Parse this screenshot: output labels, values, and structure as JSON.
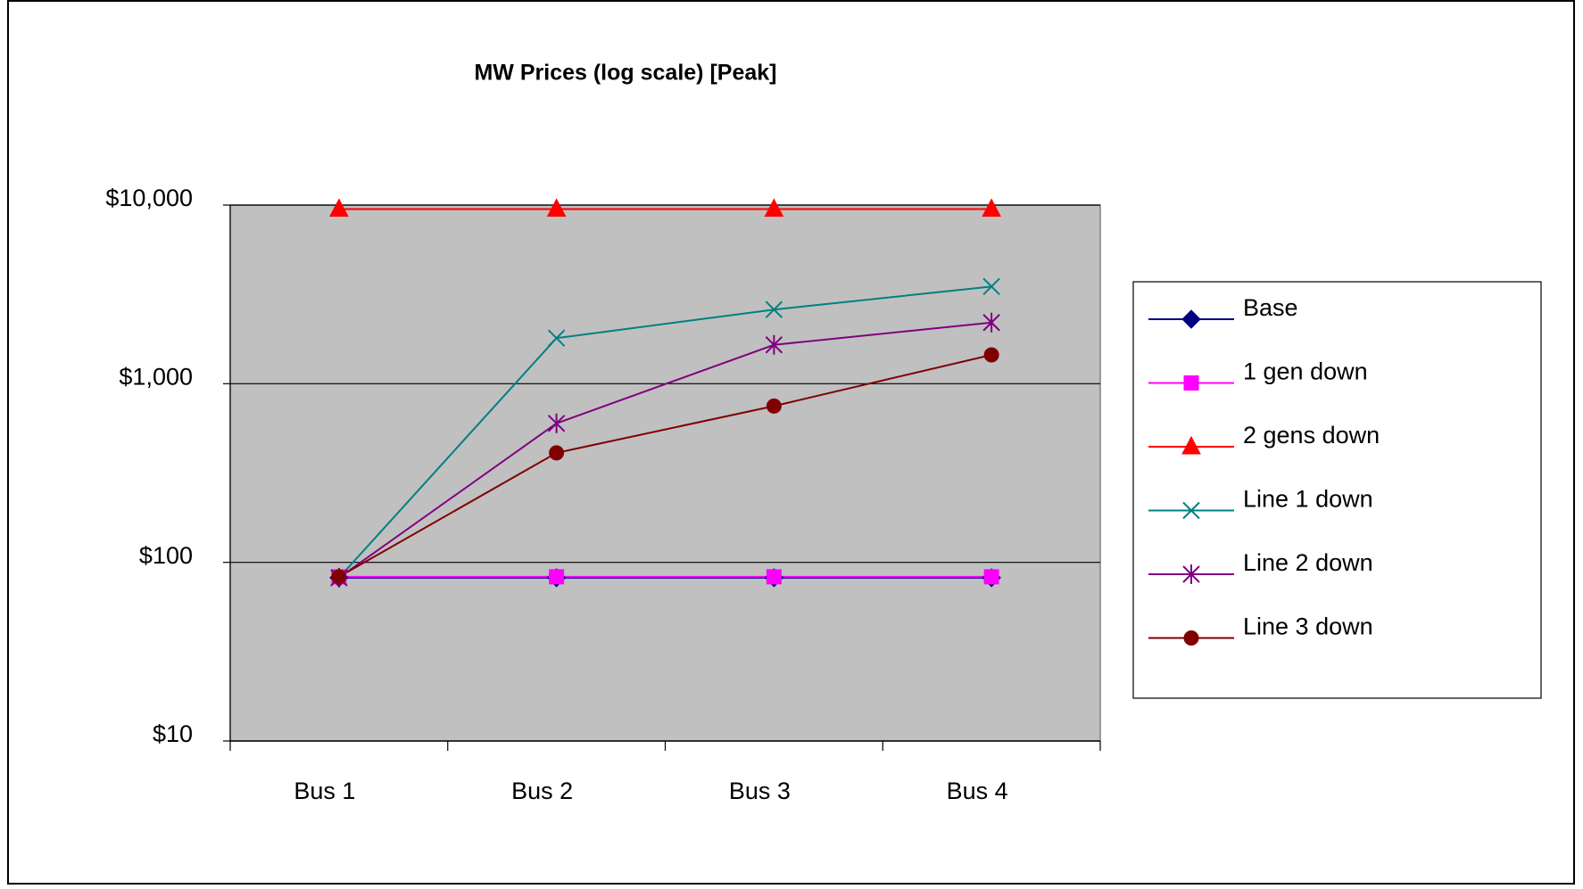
{
  "chart_data": {
    "type": "line",
    "title": "MW Prices (log scale) [Peak]",
    "categories": [
      "Bus 1",
      "Bus 2",
      "Bus 3",
      "Bus 4"
    ],
    "log_scale": true,
    "grid": true,
    "legend": "right",
    "background": "#c0c0c0",
    "ylim": [
      10,
      10000
    ],
    "yticks": [
      {
        "value": 10,
        "label": "$10"
      },
      {
        "value": 100,
        "label": "$100"
      },
      {
        "value": 1000,
        "label": "$1,000"
      },
      {
        "value": 10000,
        "label": "$10,000"
      }
    ],
    "series": [
      {
        "name": "Base",
        "color": "#000080",
        "marker": "diamond",
        "values": [
          82,
          82,
          82,
          82
        ]
      },
      {
        "name": "1 gen down",
        "color": "#ff00ff",
        "marker": "square",
        "values": [
          83,
          83,
          83,
          83
        ]
      },
      {
        "name": "2 gens down",
        "color": "#ff0000",
        "marker": "triangle",
        "values": [
          9500,
          9500,
          9500,
          9500
        ]
      },
      {
        "name": "Line 1 down",
        "color": "#008080",
        "marker": "x",
        "values": [
          82,
          1800,
          2600,
          3500
        ]
      },
      {
        "name": "Line 2 down",
        "color": "#800080",
        "marker": "asterisk",
        "values": [
          82,
          600,
          1650,
          2200
        ]
      },
      {
        "name": "Line 3 down",
        "color": "#800000",
        "marker": "circle",
        "values": [
          83,
          410,
          750,
          1450
        ]
      }
    ]
  }
}
